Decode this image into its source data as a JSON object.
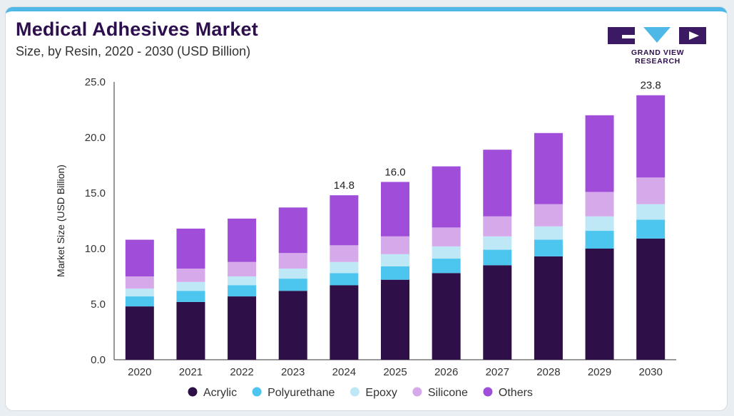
{
  "header": {
    "title": "Medical Adhesives Market",
    "subtitle": "Size, by Resin, 2020 - 2030 (USD Billion)",
    "logo_text": "GRAND VIEW RESEARCH"
  },
  "chart_data": {
    "type": "bar",
    "stacked": true,
    "title": "Medical Adhesives Market",
    "subtitle": "Size, by Resin, 2020 - 2030 (USD Billion)",
    "xlabel": "",
    "ylabel": "Market Size (USD Billion)",
    "ylim": [
      0,
      25
    ],
    "yticks": [
      "0.0",
      "5.0",
      "10.0",
      "15.0",
      "20.0",
      "25.0"
    ],
    "grid": false,
    "legend_position": "bottom",
    "categories": [
      "2020",
      "2021",
      "2022",
      "2023",
      "2024",
      "2025",
      "2026",
      "2027",
      "2028",
      "2029",
      "2030"
    ],
    "series": [
      {
        "name": "Acrylic",
        "color": "#2e0f47",
        "values": [
          4.8,
          5.2,
          5.7,
          6.2,
          6.7,
          7.2,
          7.8,
          8.5,
          9.3,
          10.0,
          10.9
        ]
      },
      {
        "name": "Polyurethane",
        "color": "#4cc6ef",
        "values": [
          0.9,
          1.0,
          1.0,
          1.1,
          1.1,
          1.2,
          1.3,
          1.4,
          1.5,
          1.6,
          1.7
        ]
      },
      {
        "name": "Epoxy",
        "color": "#bfe8f7",
        "values": [
          0.7,
          0.8,
          0.8,
          0.9,
          1.0,
          1.1,
          1.1,
          1.2,
          1.2,
          1.3,
          1.4
        ]
      },
      {
        "name": "Silicone",
        "color": "#d5a9ea",
        "values": [
          1.1,
          1.2,
          1.3,
          1.4,
          1.5,
          1.6,
          1.7,
          1.8,
          2.0,
          2.2,
          2.4
        ]
      },
      {
        "name": "Others",
        "color": "#a04ed9",
        "values": [
          3.3,
          3.6,
          3.9,
          4.1,
          4.5,
          4.9,
          5.5,
          6.0,
          6.4,
          6.9,
          7.4
        ]
      }
    ],
    "annotations": [
      {
        "category": "2024",
        "label": "14.8"
      },
      {
        "category": "2025",
        "label": "16.0"
      },
      {
        "category": "2030",
        "label": "23.8"
      }
    ]
  }
}
